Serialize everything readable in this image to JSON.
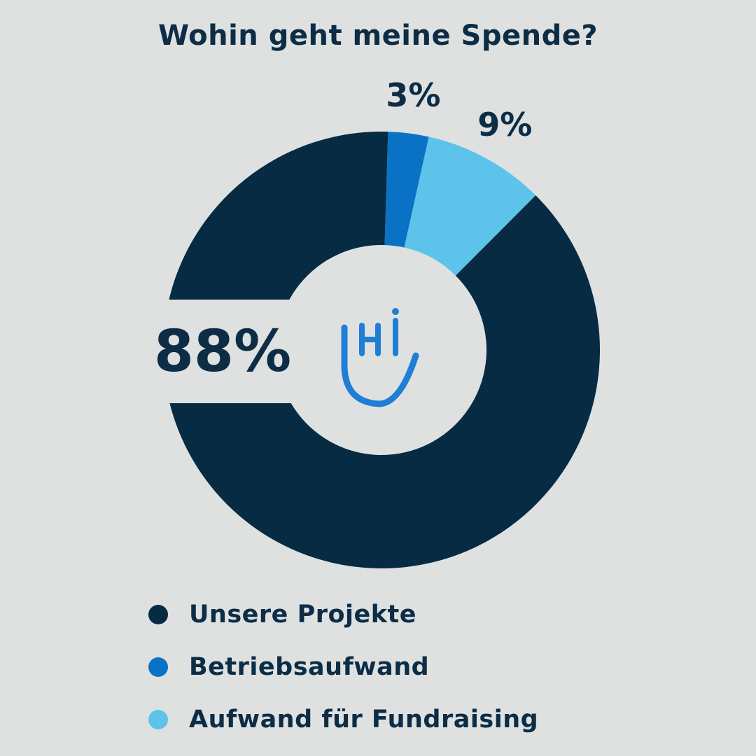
{
  "chart_data": {
    "type": "pie",
    "title": "Wohin geht meine Spende?",
    "slices": [
      {
        "label": "Unsere Projekte",
        "value": 88,
        "display": "88%",
        "color": "#062b43"
      },
      {
        "label": "Betriebsaufwand",
        "value": 3,
        "display": "3%",
        "color": "#0a72c4"
      },
      {
        "label": "Aufwand für Fundraising",
        "value": 9,
        "display": "9%",
        "color": "#5ec3ea"
      }
    ],
    "donut": true,
    "legend_position": "bottom-left"
  },
  "logo": {
    "text": "Hi",
    "name": "hi-hand-logo",
    "color": "#1f7ed6"
  },
  "colors": {
    "background": "#dfe1e1",
    "text": "#0c2d45"
  }
}
